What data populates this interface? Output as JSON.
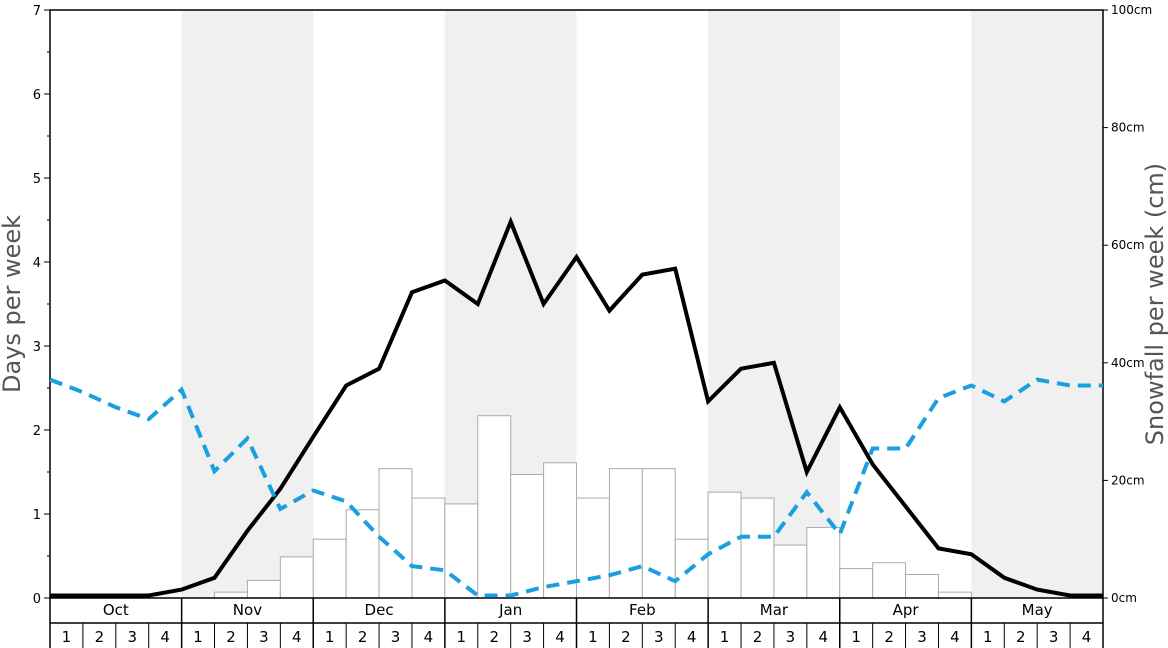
{
  "chart_data": {
    "type": "bar+line",
    "ylabel_left": "Days per week",
    "ylabel_right": "Snowfall per week (cm)",
    "ylim_left": [
      0,
      7
    ],
    "ylim_right": [
      0,
      100
    ],
    "left_ticks": [
      "0",
      "1",
      "2",
      "3",
      "4",
      "5",
      "6",
      "7"
    ],
    "right_ticks": [
      "0cm",
      "20cm",
      "40cm",
      "60cm",
      "80cm",
      "100cm"
    ],
    "months": [
      "Oct",
      "Nov",
      "Dec",
      "Jan",
      "Feb",
      "Mar",
      "Apr",
      "May"
    ],
    "week_labels": [
      "1",
      "2",
      "3",
      "4"
    ],
    "shaded_months": [
      "Nov",
      "Jan",
      "Mar",
      "May"
    ],
    "snowfall_cm": [
      0,
      0,
      0,
      0,
      0,
      1,
      3,
      7,
      10,
      15,
      22,
      17,
      16,
      31,
      21,
      23,
      17,
      22,
      22,
      10,
      18,
      17,
      9,
      12,
      5,
      6,
      4,
      1,
      0,
      0,
      0,
      0
    ],
    "series": [
      {
        "style": "solid-black",
        "axis": "left",
        "values": [
          0.03,
          0.03,
          0.03,
          0.03,
          0.1,
          0.24,
          0.8,
          1.3,
          1.92,
          2.53,
          2.73,
          3.64,
          3.78,
          3.5,
          4.48,
          3.5,
          4.06,
          3.42,
          3.85,
          3.92,
          2.34,
          2.73,
          2.8,
          1.5,
          2.27,
          1.59,
          1.09,
          0.59,
          0.52,
          0.24,
          0.1,
          0.03,
          0.03
        ]
      },
      {
        "style": "dashed-blue",
        "axis": "left",
        "values": [
          2.6,
          2.45,
          2.27,
          2.13,
          2.48,
          1.51,
          1.9,
          1.06,
          1.28,
          1.15,
          0.73,
          0.38,
          0.33,
          0.03,
          0.03,
          0.13,
          0.2,
          0.27,
          0.38,
          0.2,
          0.52,
          0.73,
          0.73,
          1.26,
          0.76,
          1.78,
          1.78,
          2.38,
          2.53,
          2.34,
          2.6,
          2.53,
          2.53
        ]
      }
    ],
    "colors": {
      "bar_fill": "#ffffff",
      "bar_stroke": "#aaaaaa",
      "solid_line": "#000000",
      "dashed_line": "#1a9fe0",
      "shade": "#f0f0f0"
    }
  }
}
